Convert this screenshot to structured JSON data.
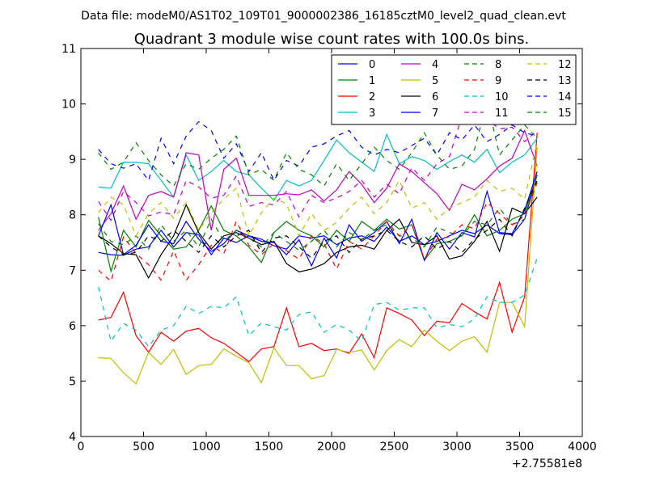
{
  "chart_data": {
    "type": "line",
    "suptitle": "Data file: modeM0/AS1T02_109T01_9000002386_16185cztM0_level2_quad_clean.evt",
    "title": "Quadrant 3 module wise count rates with 100.0s bins.",
    "xlabel": "",
    "ylabel": "",
    "x_offset_label": "+2.75581e8",
    "xlim": [
      0,
      4000
    ],
    "ylim": [
      4,
      11
    ],
    "xticks": [
      0,
      500,
      1000,
      1500,
      2000,
      2500,
      3000,
      3500,
      4000
    ],
    "yticks": [
      4,
      5,
      6,
      7,
      8,
      9,
      10,
      11
    ],
    "grid": false,
    "legend_position": "top-right",
    "x": [
      140,
      240,
      340,
      440,
      540,
      640,
      740,
      840,
      940,
      1040,
      1140,
      1240,
      1340,
      1440,
      1540,
      1640,
      1740,
      1840,
      1940,
      2040,
      2140,
      2240,
      2340,
      2440,
      2540,
      2640,
      2740,
      2840,
      2940,
      3040,
      3140,
      3240,
      3340,
      3440,
      3540,
      3640
    ],
    "series": [
      {
        "name": "0",
        "color": "#0000ff",
        "dash": "solid",
        "values": [
          7.32,
          7.28,
          7.27,
          7.38,
          7.42,
          7.72,
          7.42,
          7.68,
          7.64,
          7.28,
          7.58,
          7.5,
          7.62,
          7.56,
          7.44,
          7.38,
          7.62,
          7.58,
          7.62,
          7.46,
          7.58,
          7.62,
          7.52,
          7.78,
          7.52,
          7.62,
          7.46,
          7.52,
          7.62,
          7.72,
          7.66,
          7.82,
          7.66,
          7.64,
          7.92,
          8.72
        ]
      },
      {
        "name": "1",
        "color": "#008000",
        "dash": "solid",
        "values": [
          7.96,
          6.98,
          7.72,
          7.42,
          7.9,
          7.62,
          7.38,
          7.42,
          7.72,
          8.16,
          7.72,
          7.62,
          7.42,
          7.14,
          7.68,
          7.88,
          7.72,
          7.62,
          7.42,
          7.72,
          7.52,
          7.88,
          7.72,
          7.92,
          7.74,
          7.82,
          7.18,
          7.48,
          7.52,
          7.62,
          8.0,
          7.62,
          7.72,
          7.92,
          8.02,
          8.72
        ]
      },
      {
        "name": "2",
        "color": "#ff0000",
        "dash": "solid",
        "values": [
          6.1,
          6.15,
          6.6,
          5.82,
          5.52,
          5.88,
          5.72,
          5.9,
          5.95,
          5.78,
          5.68,
          5.52,
          5.35,
          5.58,
          5.62,
          6.32,
          5.62,
          5.68,
          5.55,
          5.58,
          5.5,
          5.85,
          5.42,
          6.32,
          6.22,
          6.1,
          5.82,
          6.08,
          6.05,
          6.4,
          6.25,
          6.12,
          6.78,
          5.88,
          6.52,
          9.48
        ]
      },
      {
        "name": "3",
        "color": "#00bfbf",
        "dash": "solid",
        "values": [
          8.5,
          8.48,
          8.95,
          8.95,
          8.92,
          8.62,
          8.32,
          9.08,
          8.62,
          8.78,
          8.98,
          8.78,
          8.72,
          8.48,
          8.26,
          8.62,
          8.52,
          8.62,
          8.98,
          9.35,
          9.12,
          8.95,
          8.78,
          9.45,
          8.92,
          9.05,
          8.98,
          8.82,
          8.96,
          9.08,
          8.95,
          9.18,
          8.76,
          8.95,
          9.08,
          9.38
        ]
      },
      {
        "name": "4",
        "color": "#bf00bf",
        "dash": "solid",
        "values": [
          7.72,
          8.02,
          8.52,
          7.92,
          8.35,
          8.42,
          8.32,
          9.12,
          9.08,
          7.72,
          8.82,
          9.02,
          8.35,
          8.35,
          8.35,
          8.38,
          8.36,
          8.45,
          8.25,
          8.45,
          8.78,
          8.55,
          8.22,
          8.48,
          8.92,
          8.78,
          8.58,
          8.38,
          8.08,
          8.55,
          8.45,
          8.65,
          8.88,
          9.02,
          9.52,
          8.88
        ]
      },
      {
        "name": "5",
        "color": "#bfbf00",
        "dash": "solid",
        "values": [
          5.42,
          5.41,
          5.15,
          4.95,
          5.52,
          5.3,
          5.57,
          5.12,
          5.28,
          5.3,
          5.58,
          5.45,
          5.33,
          4.97,
          5.6,
          5.28,
          5.28,
          5.04,
          5.1,
          5.57,
          5.52,
          5.56,
          5.2,
          5.55,
          5.75,
          5.62,
          5.92,
          5.72,
          5.55,
          5.72,
          5.8,
          5.52,
          6.42,
          6.42,
          5.98,
          9.22
        ]
      },
      {
        "name": "6",
        "color": "#000000",
        "dash": "solid",
        "values": [
          7.62,
          7.48,
          7.3,
          7.28,
          6.86,
          7.28,
          7.62,
          8.18,
          7.68,
          7.38,
          7.62,
          7.68,
          7.58,
          7.46,
          7.52,
          7.12,
          6.97,
          7.02,
          7.12,
          7.32,
          7.42,
          7.45,
          7.38,
          7.72,
          7.92,
          7.5,
          7.46,
          7.62,
          7.2,
          7.26,
          7.52,
          7.88,
          7.34,
          8.12,
          8.02,
          8.32
        ]
      },
      {
        "name": "7",
        "color": "#0000ff",
        "dash": "solid",
        "values": [
          7.62,
          8.18,
          7.28,
          7.45,
          7.82,
          7.52,
          7.48,
          7.88,
          7.56,
          7.34,
          7.48,
          7.72,
          7.62,
          7.52,
          7.5,
          7.28,
          7.55,
          7.08,
          7.58,
          7.22,
          7.82,
          7.52,
          7.68,
          7.88,
          7.48,
          7.92,
          7.18,
          7.68,
          7.38,
          7.68,
          7.6,
          8.42,
          7.68,
          7.66,
          8.08,
          8.78
        ]
      },
      {
        "name": "8",
        "color": "#008000",
        "dash": "dashed",
        "values": [
          7.84,
          7.52,
          7.46,
          7.62,
          7.38,
          7.82,
          7.52,
          7.72,
          7.42,
          7.92,
          7.52,
          7.72,
          7.58,
          7.42,
          7.68,
          7.52,
          7.36,
          7.52,
          7.72,
          7.42,
          7.68,
          7.55,
          7.72,
          7.82,
          7.62,
          7.58,
          7.42,
          7.78,
          7.68,
          7.62,
          7.88,
          7.82,
          8.12,
          7.82,
          7.92,
          8.68
        ]
      },
      {
        "name": "9",
        "color": "#ff0000",
        "dash": "dashed",
        "values": [
          7.0,
          6.8,
          7.6,
          7.3,
          7.1,
          6.82,
          7.35,
          6.82,
          7.1,
          7.45,
          7.3,
          7.88,
          7.45,
          7.28,
          7.48,
          7.35,
          7.2,
          7.62,
          7.48,
          7.02,
          7.52,
          7.38,
          7.62,
          7.88,
          7.62,
          7.82,
          7.2,
          7.56,
          7.6,
          7.82,
          7.75,
          8.22,
          8.02,
          7.82,
          7.98,
          8.58
        ]
      },
      {
        "name": "10",
        "color": "#00bfbf",
        "dash": "dashed",
        "values": [
          6.7,
          5.72,
          6.04,
          5.92,
          5.62,
          5.92,
          6.0,
          6.35,
          6.22,
          6.35,
          6.32,
          6.52,
          5.82,
          6.05,
          5.98,
          5.92,
          6.2,
          6.25,
          5.88,
          6.02,
          5.92,
          5.72,
          6.38,
          6.42,
          6.28,
          6.32,
          6.32,
          5.96,
          6.02,
          5.98,
          6.12,
          6.52,
          6.42,
          6.42,
          6.55,
          7.22
        ]
      },
      {
        "name": "11",
        "color": "#bf00bf",
        "dash": "dashed",
        "values": [
          8.24,
          7.9,
          8.42,
          8.22,
          7.98,
          8.05,
          8.0,
          8.62,
          8.5,
          8.3,
          8.35,
          8.7,
          8.15,
          8.22,
          8.18,
          8.42,
          7.96,
          8.35,
          8.22,
          8.3,
          8.42,
          8.62,
          8.32,
          8.55,
          8.38,
          8.85,
          8.62,
          8.92,
          9.05,
          9.78,
          9.65,
          9.72,
          9.55,
          9.58,
          9.32,
          9.52
        ]
      },
      {
        "name": "12",
        "color": "#bfbf00",
        "dash": "dashed",
        "values": [
          8.04,
          8.32,
          8.18,
          7.62,
          8.02,
          8.22,
          7.94,
          8.22,
          7.72,
          8.04,
          8.28,
          8.48,
          7.62,
          8.04,
          8.3,
          8.2,
          7.62,
          8.02,
          7.72,
          7.86,
          8.12,
          8.32,
          8.02,
          8.22,
          8.62,
          8.12,
          8.22,
          7.92,
          8.12,
          8.22,
          8.32,
          8.62,
          8.42,
          8.48,
          8.28,
          9.32
        ]
      },
      {
        "name": "13",
        "color": "#000000",
        "dash": "dashed",
        "values": [
          7.62,
          7.42,
          7.28,
          7.32,
          7.62,
          7.52,
          7.72,
          7.52,
          7.32,
          7.62,
          7.42,
          7.62,
          7.72,
          7.32,
          7.58,
          7.62,
          7.42,
          7.22,
          7.52,
          7.62,
          7.32,
          7.56,
          7.62,
          7.72,
          7.52,
          7.42,
          7.62,
          7.38,
          7.52,
          7.32,
          7.56,
          7.72,
          7.92,
          7.62,
          8.12,
          8.62
        ]
      },
      {
        "name": "14",
        "color": "#0000ff",
        "dash": "dashed",
        "values": [
          9.18,
          8.92,
          8.84,
          8.92,
          8.62,
          9.38,
          8.92,
          9.42,
          9.68,
          9.52,
          9.02,
          9.28,
          8.78,
          9.12,
          8.62,
          8.98,
          8.88,
          9.22,
          9.28,
          9.42,
          9.52,
          9.22,
          9.08,
          9.18,
          9.12,
          9.25,
          9.38,
          9.08,
          9.48,
          9.35,
          9.62,
          9.32,
          9.45,
          9.62,
          9.48,
          9.42
        ]
      },
      {
        "name": "15",
        "color": "#008000",
        "dash": "dashed",
        "values": [
          9.12,
          8.82,
          8.95,
          9.3,
          8.98,
          8.72,
          8.52,
          8.92,
          8.82,
          9.02,
          9.18,
          9.42,
          8.72,
          8.82,
          8.62,
          9.12,
          8.82,
          8.72,
          8.52,
          8.92,
          8.62,
          8.92,
          9.22,
          8.98,
          8.82,
          9.12,
          9.48,
          9.08,
          8.82,
          8.88,
          9.18,
          10.05,
          9.08,
          9.35,
          9.62,
          9.38
        ]
      }
    ]
  }
}
